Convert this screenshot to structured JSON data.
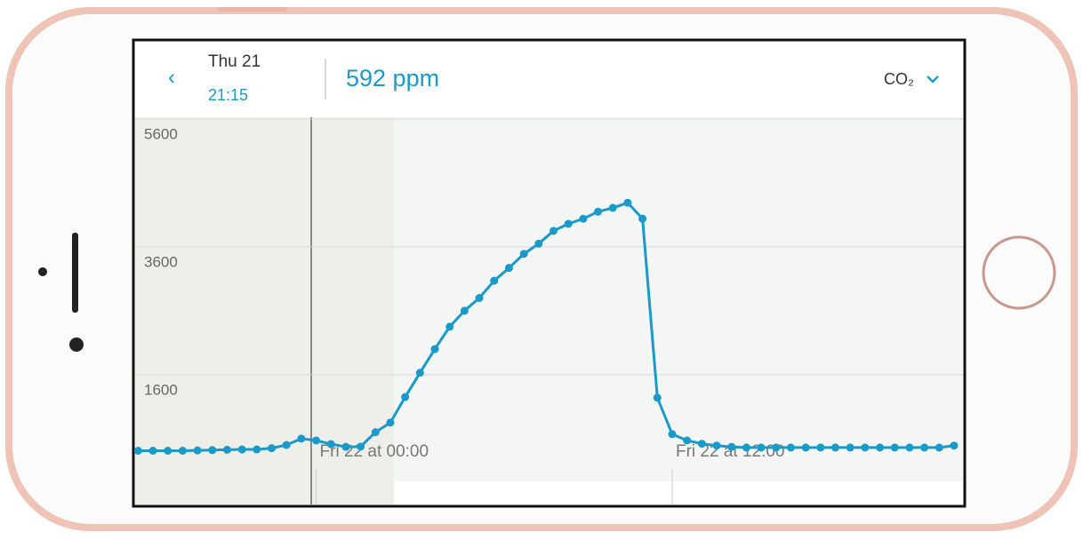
{
  "header": {
    "date": "Thu 21",
    "time": "21:15",
    "reading": "592 ppm",
    "metric": "CO₂"
  },
  "chart_data": {
    "type": "line",
    "color": "#1a9ac9",
    "grid": true,
    "x": [
      -6,
      -5.5,
      -5,
      -4.5,
      -4,
      -3.5,
      -3,
      -2.5,
      -2,
      -1.5,
      -1,
      -0.5,
      0,
      0.5,
      1,
      1.5,
      2,
      2.5,
      3,
      3.5,
      4,
      4.5,
      5,
      5.5,
      6,
      6.5,
      7,
      7.5,
      8,
      8.5,
      9,
      9.5,
      10,
      10.5,
      11,
      11.5,
      12,
      12.5,
      13,
      13.5,
      14,
      14.5,
      15,
      15.5,
      16,
      16.5,
      17,
      17.5,
      18,
      18.5,
      19,
      19.5,
      20,
      20.5,
      21,
      21.5
    ],
    "values": [
      410,
      410,
      410,
      410,
      415,
      420,
      425,
      430,
      430,
      450,
      500,
      600,
      570,
      515,
      470,
      475,
      700,
      850,
      1250,
      1630,
      2000,
      2350,
      2600,
      2800,
      3070,
      3270,
      3490,
      3650,
      3850,
      3960,
      4040,
      4150,
      4210,
      4290,
      4040,
      1240,
      670,
      570,
      520,
      490,
      470,
      460,
      460,
      460,
      460,
      460,
      460,
      460,
      460,
      460,
      460,
      460,
      460,
      460,
      460,
      490
    ],
    "xlim": [
      -6.1,
      21.8
    ],
    "xticks": [
      {
        "value": 0,
        "label": "Fri 22 at 00:00"
      },
      {
        "value": 12,
        "label": "Fri 22 at 12:00"
      }
    ],
    "ylim": [
      0,
      5600
    ],
    "yticks": [
      1600,
      3600,
      5600
    ]
  }
}
